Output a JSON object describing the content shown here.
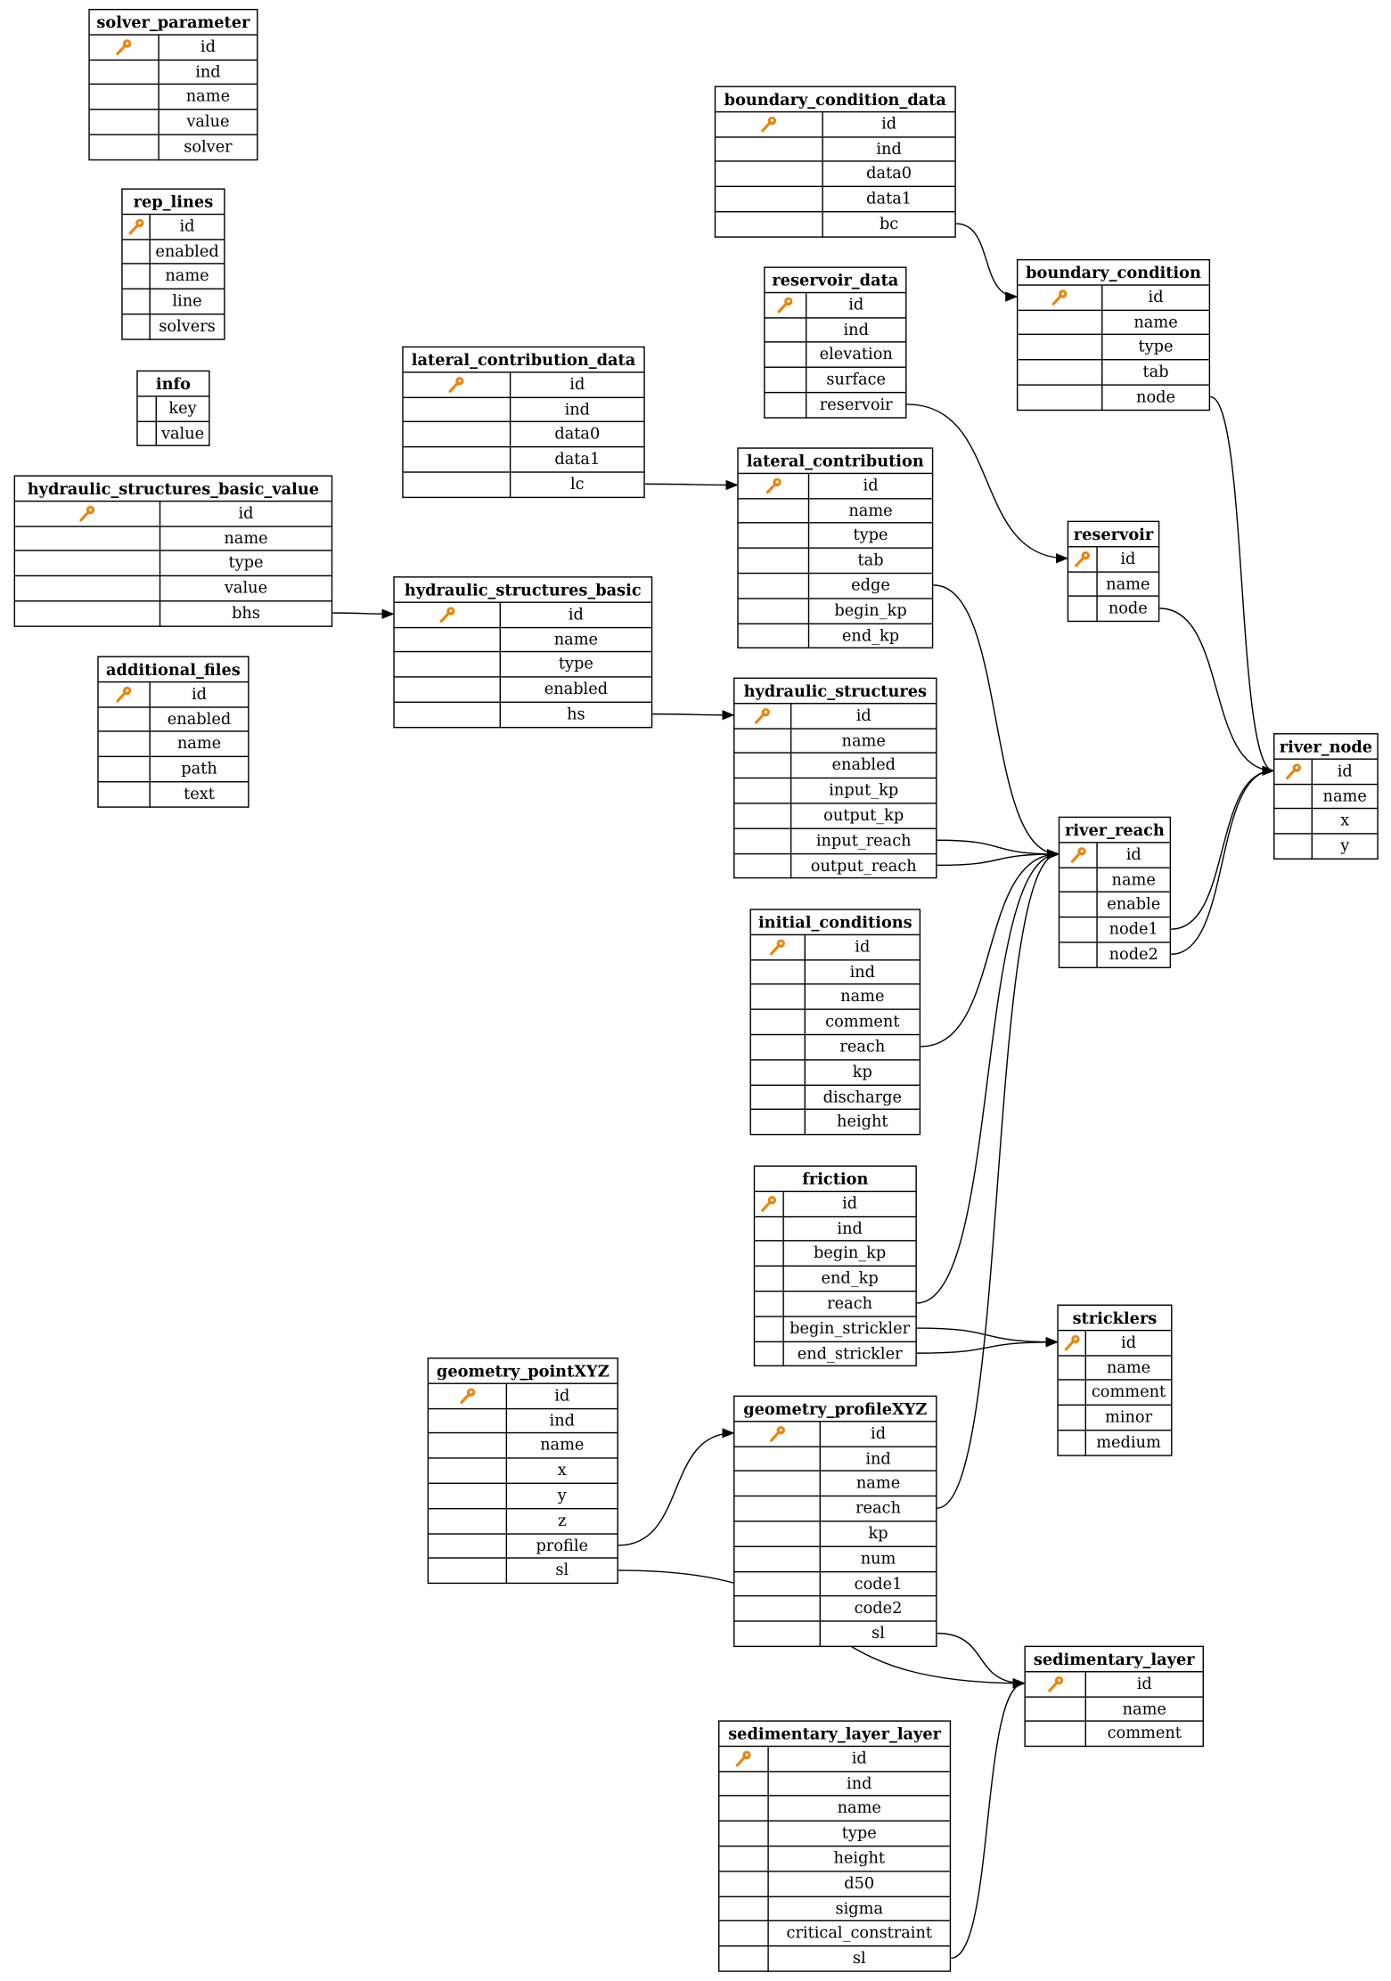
{
  "diagram": {
    "key_color": "#e8850c",
    "tables": [
      {
        "name": "solver_parameter",
        "pk": "id",
        "columns": [
          "id",
          "ind",
          "name",
          "value",
          "solver"
        ]
      },
      {
        "name": "rep_lines",
        "pk": "id",
        "columns": [
          "id",
          "enabled",
          "name",
          "line",
          "solvers"
        ]
      },
      {
        "name": "info",
        "pk": null,
        "columns": [
          "key",
          "value"
        ]
      },
      {
        "name": "hydraulic_structures_basic_value",
        "pk": "id",
        "columns": [
          "id",
          "name",
          "type",
          "value",
          "bhs"
        ]
      },
      {
        "name": "additional_files",
        "pk": "id",
        "columns": [
          "id",
          "enabled",
          "name",
          "path",
          "text"
        ]
      },
      {
        "name": "lateral_contribution_data",
        "pk": "id",
        "columns": [
          "id",
          "ind",
          "data0",
          "data1",
          "lc"
        ]
      },
      {
        "name": "hydraulic_structures_basic",
        "pk": "id",
        "columns": [
          "id",
          "name",
          "type",
          "enabled",
          "hs"
        ]
      },
      {
        "name": "boundary_condition_data",
        "pk": "id",
        "columns": [
          "id",
          "ind",
          "data0",
          "data1",
          "bc"
        ]
      },
      {
        "name": "reservoir_data",
        "pk": "id",
        "columns": [
          "id",
          "ind",
          "elevation",
          "surface",
          "reservoir"
        ]
      },
      {
        "name": "boundary_condition",
        "pk": "id",
        "columns": [
          "id",
          "name",
          "type",
          "tab",
          "node"
        ]
      },
      {
        "name": "lateral_contribution",
        "pk": "id",
        "columns": [
          "id",
          "name",
          "type",
          "tab",
          "edge",
          "begin_kp",
          "end_kp"
        ]
      },
      {
        "name": "reservoir",
        "pk": "id",
        "columns": [
          "id",
          "name",
          "node"
        ]
      },
      {
        "name": "hydraulic_structures",
        "pk": "id",
        "columns": [
          "id",
          "name",
          "enabled",
          "input_kp",
          "output_kp",
          "input_reach",
          "output_reach"
        ]
      },
      {
        "name": "river_reach",
        "pk": "id",
        "columns": [
          "id",
          "name",
          "enable",
          "node1",
          "node2"
        ]
      },
      {
        "name": "river_node",
        "pk": "id",
        "columns": [
          "id",
          "name",
          "x",
          "y"
        ]
      },
      {
        "name": "initial_conditions",
        "pk": "id",
        "columns": [
          "id",
          "ind",
          "name",
          "comment",
          "reach",
          "kp",
          "discharge",
          "height"
        ]
      },
      {
        "name": "friction",
        "pk": "id",
        "columns": [
          "id",
          "ind",
          "begin_kp",
          "end_kp",
          "reach",
          "begin_strickler",
          "end_strickler"
        ]
      },
      {
        "name": "stricklers",
        "pk": "id",
        "columns": [
          "id",
          "name",
          "comment",
          "minor",
          "medium"
        ]
      },
      {
        "name": "geometry_pointXYZ",
        "pk": "id",
        "columns": [
          "id",
          "ind",
          "name",
          "x",
          "y",
          "z",
          "profile",
          "sl"
        ]
      },
      {
        "name": "geometry_profileXYZ",
        "pk": "id",
        "columns": [
          "id",
          "ind",
          "name",
          "reach",
          "kp",
          "num",
          "code1",
          "code2",
          "sl"
        ]
      },
      {
        "name": "sedimentary_layer",
        "pk": "id",
        "columns": [
          "id",
          "name",
          "comment"
        ]
      },
      {
        "name": "sedimentary_layer_layer",
        "pk": "id",
        "columns": [
          "id",
          "ind",
          "name",
          "type",
          "height",
          "d50",
          "sigma",
          "critical_constraint",
          "sl"
        ]
      }
    ],
    "relations": [
      {
        "from": "boundary_condition_data.bc",
        "to": "boundary_condition.id"
      },
      {
        "from": "reservoir_data.reservoir",
        "to": "reservoir.id"
      },
      {
        "from": "boundary_condition.node",
        "to": "river_node.id"
      },
      {
        "from": "reservoir.node",
        "to": "river_node.id"
      },
      {
        "from": "river_reach.node1",
        "to": "river_node.id"
      },
      {
        "from": "river_reach.node2",
        "to": "river_node.id"
      },
      {
        "from": "lateral_contribution_data.lc",
        "to": "lateral_contribution.id"
      },
      {
        "from": "hydraulic_structures_basic_value.bhs",
        "to": "hydraulic_structures_basic.id"
      },
      {
        "from": "hydraulic_structures_basic.hs",
        "to": "hydraulic_structures.id"
      },
      {
        "from": "lateral_contribution.edge",
        "to": "river_reach.id"
      },
      {
        "from": "hydraulic_structures.input_reach",
        "to": "river_reach.id"
      },
      {
        "from": "hydraulic_structures.output_reach",
        "to": "river_reach.id"
      },
      {
        "from": "initial_conditions.reach",
        "to": "river_reach.id"
      },
      {
        "from": "friction.reach",
        "to": "river_reach.id"
      },
      {
        "from": "friction.begin_strickler",
        "to": "stricklers.id"
      },
      {
        "from": "friction.end_strickler",
        "to": "stricklers.id"
      },
      {
        "from": "geometry_pointXYZ.profile",
        "to": "geometry_profileXYZ.id"
      },
      {
        "from": "geometry_pointXYZ.sl",
        "to": "sedimentary_layer.id"
      },
      {
        "from": "geometry_profileXYZ.reach",
        "to": "river_reach.id"
      },
      {
        "from": "geometry_profileXYZ.sl",
        "to": "sedimentary_layer.id"
      },
      {
        "from": "sedimentary_layer_layer.sl",
        "to": "sedimentary_layer.id"
      }
    ]
  }
}
